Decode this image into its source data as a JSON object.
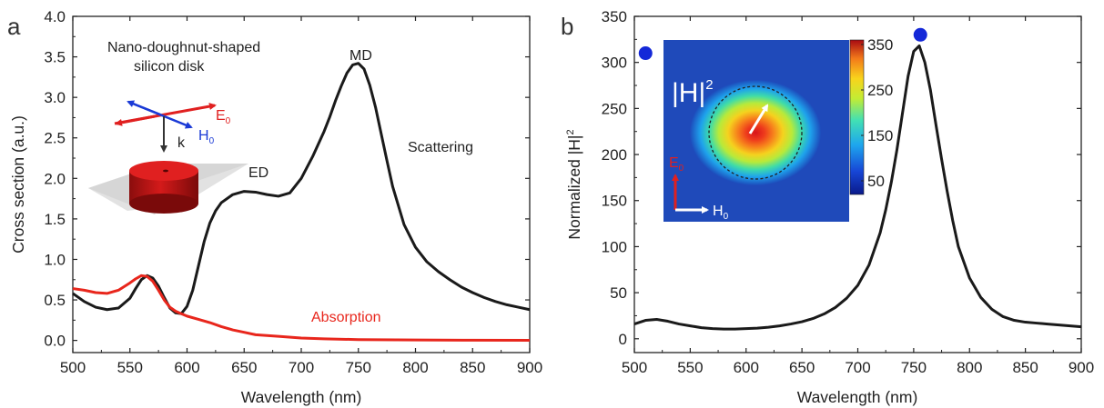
{
  "chart_data": [
    {
      "panel": "a",
      "type": "line",
      "xlabel": "Wavelength (nm)",
      "ylabel": "Cross section (a.u.)",
      "xlim": [
        500,
        900
      ],
      "ylim": [
        -0.15,
        4.0
      ],
      "xticks": [
        "500",
        "550",
        "600",
        "650",
        "700",
        "750",
        "800",
        "850",
        "900"
      ],
      "yticks": [
        "0.0",
        "0.5",
        "1.0",
        "1.5",
        "2.0",
        "2.5",
        "3.0",
        "3.5",
        "4.0"
      ],
      "series": [
        {
          "name": "Scattering",
          "color": "#1a1a1a",
          "x": [
            500,
            510,
            520,
            530,
            540,
            550,
            555,
            560,
            565,
            570,
            575,
            580,
            585,
            590,
            595,
            600,
            605,
            610,
            615,
            620,
            625,
            630,
            640,
            650,
            660,
            670,
            680,
            690,
            700,
            710,
            720,
            725,
            730,
            735,
            740,
            745,
            750,
            755,
            760,
            765,
            770,
            775,
            780,
            790,
            800,
            810,
            820,
            830,
            840,
            850,
            860,
            870,
            880,
            890,
            900
          ],
          "y": [
            0.58,
            0.48,
            0.41,
            0.38,
            0.4,
            0.52,
            0.64,
            0.75,
            0.8,
            0.77,
            0.67,
            0.53,
            0.4,
            0.34,
            0.33,
            0.42,
            0.62,
            0.92,
            1.22,
            1.45,
            1.6,
            1.7,
            1.8,
            1.84,
            1.83,
            1.8,
            1.78,
            1.82,
            2.0,
            2.27,
            2.58,
            2.76,
            2.96,
            3.14,
            3.3,
            3.4,
            3.42,
            3.35,
            3.15,
            2.88,
            2.55,
            2.22,
            1.9,
            1.43,
            1.15,
            0.97,
            0.85,
            0.75,
            0.66,
            0.59,
            0.53,
            0.48,
            0.44,
            0.41,
            0.38
          ]
        },
        {
          "name": "Absorption",
          "color": "#e8261c",
          "x": [
            500,
            510,
            520,
            530,
            540,
            550,
            555,
            560,
            565,
            570,
            575,
            580,
            585,
            590,
            595,
            600,
            610,
            620,
            630,
            640,
            650,
            660,
            680,
            700,
            720,
            750,
            800,
            850,
            900
          ],
          "y": [
            0.64,
            0.62,
            0.59,
            0.58,
            0.62,
            0.71,
            0.76,
            0.8,
            0.79,
            0.73,
            0.62,
            0.5,
            0.41,
            0.36,
            0.33,
            0.3,
            0.26,
            0.22,
            0.17,
            0.13,
            0.1,
            0.07,
            0.05,
            0.03,
            0.02,
            0.01,
            0.005,
            0.003,
            0.002
          ]
        }
      ],
      "annotations": {
        "title_line1": "Nano-doughnut-shaped",
        "title_line2": "silicon disk",
        "md": "MD",
        "ed": "ED",
        "scattering": "Scattering",
        "absorption": "Absorption",
        "e_label": "E",
        "e_sub": "0",
        "h_label": "H",
        "h_sub": "0",
        "k_label": "k"
      }
    },
    {
      "panel": "b",
      "type": "line",
      "xlabel": "Wavelength (nm)",
      "ylabel_main": "Normalized |H|",
      "ylabel_sup": "2",
      "xlim": [
        500,
        900
      ],
      "ylim": [
        -15,
        350
      ],
      "xticks": [
        "500",
        "550",
        "600",
        "650",
        "700",
        "750",
        "800",
        "850",
        "900"
      ],
      "yticks": [
        "0",
        "50",
        "100",
        "150",
        "200",
        "250",
        "300",
        "350"
      ],
      "series": [
        {
          "color": "#1a1a1a",
          "x": [
            500,
            510,
            520,
            530,
            540,
            550,
            560,
            570,
            580,
            590,
            600,
            610,
            620,
            630,
            640,
            650,
            660,
            670,
            680,
            690,
            700,
            710,
            720,
            725,
            730,
            735,
            740,
            745,
            750,
            755,
            760,
            765,
            770,
            775,
            780,
            785,
            790,
            800,
            810,
            820,
            830,
            840,
            850,
            860,
            870,
            880,
            890,
            900
          ],
          "y": [
            16,
            20,
            21,
            19,
            16,
            14,
            12,
            11,
            10.5,
            10.5,
            11,
            11.5,
            12.5,
            14,
            16,
            18.5,
            22,
            27,
            34,
            44,
            58,
            80,
            115,
            140,
            170,
            205,
            245,
            285,
            312,
            318,
            300,
            270,
            232,
            195,
            160,
            128,
            100,
            66,
            45,
            32,
            24,
            20,
            18,
            17,
            16,
            15,
            14,
            13
          ]
        }
      ],
      "markers": [
        {
          "x": 510,
          "y": 310,
          "color": "#1428d8"
        },
        {
          "x": 756,
          "y": 330,
          "color": "#1428d8"
        }
      ],
      "inset": {
        "title_main": "|H|",
        "title_sup": "2",
        "colorbar_ticks": [
          "350",
          "250",
          "150",
          "50"
        ],
        "e_label": "E",
        "e_sub": "0",
        "h_label": "H",
        "h_sub": "0"
      }
    }
  ]
}
